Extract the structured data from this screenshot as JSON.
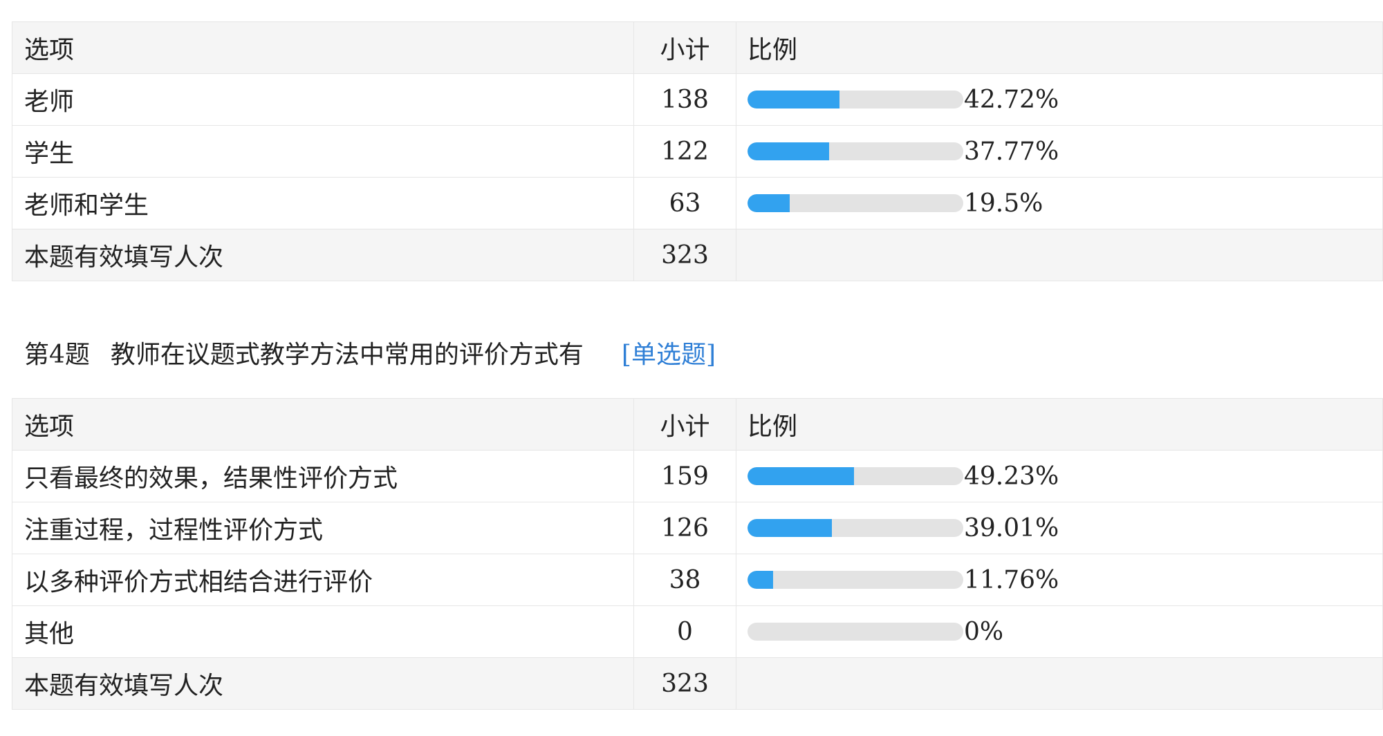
{
  "table1": {
    "headers": {
      "option": "选项",
      "count": "小计",
      "ratio": "比例"
    },
    "rows": [
      {
        "label": "老师",
        "count": "138",
        "percent": "42.72%",
        "value": 42.72
      },
      {
        "label": "学生",
        "count": "122",
        "percent": "37.77%",
        "value": 37.77
      },
      {
        "label": "老师和学生",
        "count": "63",
        "percent": "19.5%",
        "value": 19.5
      }
    ],
    "total": {
      "label": "本题有效填写人次",
      "count": "323"
    }
  },
  "question": {
    "number": "第4题",
    "text": "教师在议题式教学方法中常用的评价方式有",
    "type": "[单选题]"
  },
  "table2": {
    "headers": {
      "option": "选项",
      "count": "小计",
      "ratio": "比例"
    },
    "rows": [
      {
        "label": "只看最终的效果，结果性评价方式",
        "count": "159",
        "percent": "49.23%",
        "value": 49.23
      },
      {
        "label": "注重过程，过程性评价方式",
        "count": "126",
        "percent": "39.01%",
        "value": 39.01
      },
      {
        "label": "以多种评价方式相结合进行评价",
        "count": "38",
        "percent": "11.76%",
        "value": 11.76
      },
      {
        "label": "其他",
        "count": "0",
        "percent": "0%",
        "value": 0
      }
    ],
    "total": {
      "label": "本题有效填写人次",
      "count": "323"
    }
  },
  "colors": {
    "bar_fill": "#32a2ef",
    "bar_track": "#e3e3e3",
    "link": "#2f7fd6",
    "header_bg": "#f5f5f5",
    "border": "#e6e6e6"
  }
}
